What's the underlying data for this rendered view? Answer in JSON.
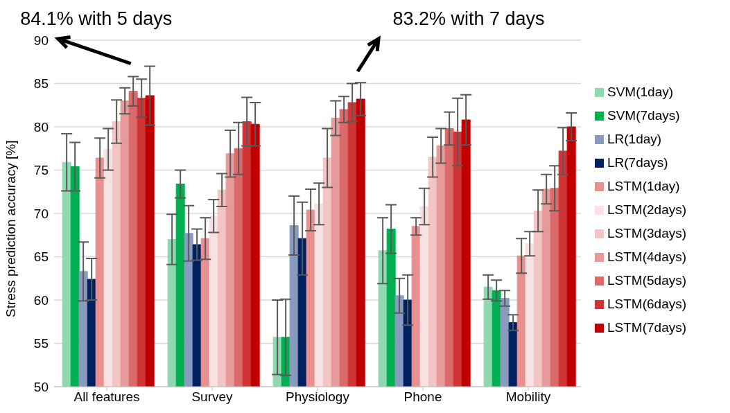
{
  "chart_data": {
    "type": "bar",
    "ylabel": "Stress prediction accuracy [%]",
    "categories": [
      "All features",
      "Survey",
      "Physiology",
      "Phone",
      "Mobility"
    ],
    "ylim": [
      50,
      90
    ],
    "yticks": [
      50,
      55,
      60,
      65,
      70,
      75,
      80,
      85,
      90
    ],
    "grid": "y",
    "legend": "right",
    "annotations": [
      "84.1% with 5 days",
      "83.2% with 7 days"
    ],
    "series": [
      {
        "name": "SVM(1day)",
        "color": "#8fd9b0",
        "values": [
          75.9,
          67.0,
          55.7,
          65.7,
          61.5
        ],
        "errors": [
          3.3,
          2.9,
          4.3,
          3.8,
          1.4
        ]
      },
      {
        "name": "SVM(7days)",
        "color": "#00b050",
        "values": [
          75.4,
          73.4,
          55.7,
          68.2,
          61.1
        ],
        "errors": [
          2.8,
          1.6,
          4.4,
          2.8,
          1.2
        ]
      },
      {
        "name": "LR(1day)",
        "color": "#8a9bc0",
        "values": [
          63.3,
          67.7,
          68.6,
          60.5,
          60.2
        ],
        "errors": [
          3.4,
          3.2,
          3.4,
          2.0,
          0.9
        ]
      },
      {
        "name": "LR(7days)",
        "color": "#002060",
        "values": [
          62.4,
          66.4,
          67.1,
          60.0,
          57.4
        ],
        "errors": [
          2.4,
          1.8,
          4.2,
          2.9,
          0.9
        ]
      },
      {
        "name": "LSTM(1day)",
        "color": "#e89090",
        "values": [
          76.4,
          67.1,
          70.4,
          68.5,
          65.1
        ],
        "errors": [
          2.3,
          2.4,
          2.4,
          1.0,
          2.0
        ]
      },
      {
        "name": "LSTM(2days)",
        "color": "#f8e1e1",
        "values": [
          77.4,
          69.7,
          71.1,
          70.8,
          66.5
        ],
        "errors": [
          2.4,
          1.9,
          2.4,
          2.1,
          1.4
        ]
      },
      {
        "name": "LSTM(3days)",
        "color": "#f2c4c4",
        "values": [
          80.6,
          72.7,
          76.4,
          76.5,
          70.3
        ],
        "errors": [
          2.5,
          1.9,
          3.4,
          2.3,
          2.4
        ]
      },
      {
        "name": "LSTM(4days)",
        "color": "#e79a9a",
        "values": [
          83.0,
          76.9,
          81.0,
          77.8,
          72.8
        ],
        "errors": [
          1.5,
          2.7,
          2.0,
          2.0,
          1.7
        ]
      },
      {
        "name": "LSTM(5days)",
        "color": "#db6a6a",
        "values": [
          84.1,
          77.5,
          82.0,
          79.8,
          72.9
        ],
        "errors": [
          1.7,
          3.0,
          1.5,
          1.9,
          2.6
        ]
      },
      {
        "name": "LSTM(6days)",
        "color": "#d03434",
        "values": [
          83.3,
          80.6,
          82.8,
          79.4,
          77.2
        ],
        "errors": [
          2.2,
          2.8,
          2.2,
          3.9,
          2.7
        ]
      },
      {
        "name": "LSTM(7days)",
        "color": "#c00000",
        "values": [
          83.6,
          80.3,
          83.2,
          80.8,
          80.0
        ],
        "errors": [
          3.4,
          2.5,
          1.9,
          2.9,
          1.6
        ]
      }
    ]
  }
}
